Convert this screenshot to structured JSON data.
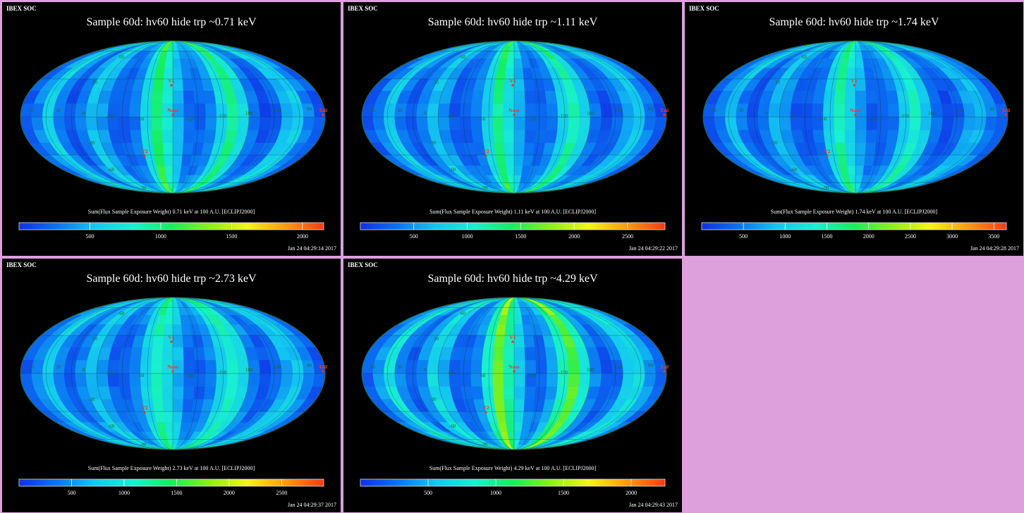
{
  "colormap": [
    "#1030e6",
    "#0a74f2",
    "#14c8f0",
    "#19f0d0",
    "#16ef5a",
    "#8df018",
    "#f6f416",
    "#fb9a10",
    "#f53a16"
  ],
  "grid_label_color": "#1e6a2e",
  "marker_color": "#ff3020",
  "panels": [
    {
      "soc_label": "IBEX SOC",
      "chart_data": {
        "type": "heatmap",
        "title": "Sample 60d: hv60 hide trp ~0.71 keV",
        "colorbar_title": "Sum(Flux Sample Exposure Weight)  0.71 keV at 100 A.U. [ECLIPJ2000]",
        "colorbar_ticks": [
          500,
          1000,
          1500,
          2000
        ],
        "colorbar_range": [
          0,
          2150
        ],
        "timestamp": "Jan 24 04:29:14 2017",
        "swath_intensity": [
          0.06,
          0.14,
          0.26,
          0.22,
          0.09,
          0.05,
          0.12,
          0.3,
          0.43,
          0.29,
          0.14,
          0.09,
          0.1,
          0.21,
          0.33,
          0.46,
          0.29,
          0.12,
          0.08,
          0.07,
          0.18,
          0.24,
          0.14,
          0.06,
          0.13,
          0.27,
          0.15,
          0.07
        ]
      },
      "grid_labels": {
        "lon_left": "60",
        "lon_30": "30",
        "lon_0": "0",
        "lon_m30": "-30",
        "lon_m60": "-60",
        "lon_m120": "-120",
        "lon_m150": "-150",
        "lon_180": "180",
        "lon_150": "150",
        "lon_right": "90",
        "lat_60n": "60",
        "lat_30n": "30",
        "lat_30s": "-30",
        "lat_60s": "-60",
        "lat_90s": "-90"
      },
      "markers": {
        "v1": "V1",
        "v2": "V2",
        "nose": "Nose",
        "tail": "Tail"
      }
    },
    {
      "soc_label": "IBEX SOC",
      "chart_data": {
        "type": "heatmap",
        "title": "Sample 60d: hv60 hide trp ~1.11 keV",
        "colorbar_title": "Sum(Flux Sample Exposure Weight)  1.11 keV at 100 A.U. [ECLIPJ2000]",
        "colorbar_ticks": [
          500,
          1000,
          1500,
          2000,
          2500
        ],
        "colorbar_range": [
          0,
          2850
        ],
        "timestamp": "Jan 24 04:29:22 2017",
        "swath_intensity": [
          0.06,
          0.14,
          0.24,
          0.2,
          0.09,
          0.05,
          0.12,
          0.28,
          0.4,
          0.27,
          0.13,
          0.08,
          0.09,
          0.2,
          0.31,
          0.44,
          0.28,
          0.12,
          0.08,
          0.07,
          0.17,
          0.23,
          0.14,
          0.06,
          0.12,
          0.25,
          0.14,
          0.07
        ]
      },
      "grid_labels": {
        "lon_left": "60",
        "lon_30": "30",
        "lon_0": "0",
        "lon_m30": "-30",
        "lon_m60": "-60",
        "lon_m120": "-120",
        "lon_m150": "-150",
        "lon_180": "180",
        "lon_150": "150",
        "lon_right": "90",
        "lat_60n": "60",
        "lat_30n": "30",
        "lat_30s": "-30",
        "lat_60s": "-60",
        "lat_90s": "-90"
      },
      "markers": {
        "v1": "V1",
        "v2": "V2",
        "nose": "Nose",
        "tail": "Tail"
      }
    },
    {
      "soc_label": "IBEX SOC",
      "chart_data": {
        "type": "heatmap",
        "title": "Sample 60d: hv60 hide trp ~1.74 keV",
        "colorbar_title": "Sum(Flux Sample Exposure Weight)  1.74 keV at 100 A.U. [ECLIPJ2000]",
        "colorbar_ticks": [
          500,
          1000,
          1500,
          2000,
          2500,
          3000,
          3500
        ],
        "colorbar_range": [
          0,
          3650
        ],
        "timestamp": "Jan 24 04:29:28 2017",
        "swath_intensity": [
          0.06,
          0.13,
          0.22,
          0.19,
          0.08,
          0.05,
          0.11,
          0.26,
          0.37,
          0.25,
          0.12,
          0.08,
          0.09,
          0.19,
          0.29,
          0.4,
          0.26,
          0.11,
          0.07,
          0.07,
          0.16,
          0.21,
          0.13,
          0.06,
          0.12,
          0.24,
          0.14,
          0.07
        ]
      },
      "grid_labels": {
        "lon_left": "60",
        "lon_30": "30",
        "lon_0": "0",
        "lon_m30": "-30",
        "lon_m60": "-60",
        "lon_m120": "-120",
        "lon_m150": "-150",
        "lon_180": "180",
        "lon_150": "150",
        "lon_right": "90",
        "lat_60n": "60",
        "lat_30n": "30",
        "lat_30s": "-30",
        "lat_60s": "-60",
        "lat_90s": "-90"
      },
      "markers": {
        "v1": "V1",
        "v2": "V2",
        "nose": "Nose",
        "tail": "Tail"
      }
    },
    {
      "soc_label": "IBEX SOC",
      "chart_data": {
        "type": "heatmap",
        "title": "Sample 60d: hv60 hide trp ~2.73 keV",
        "colorbar_title": "Sum(Flux Sample Exposure Weight)  2.73 keV at 100 A.U. [ECLIPJ2000]",
        "colorbar_ticks": [
          500,
          1000,
          1500,
          2000,
          2500
        ],
        "colorbar_range": [
          0,
          2900
        ],
        "timestamp": "Jan 24 04:29:37 2017",
        "swath_intensity": [
          0.07,
          0.16,
          0.25,
          0.21,
          0.1,
          0.06,
          0.14,
          0.29,
          0.36,
          0.28,
          0.15,
          0.09,
          0.1,
          0.22,
          0.3,
          0.38,
          0.27,
          0.13,
          0.08,
          0.08,
          0.19,
          0.24,
          0.15,
          0.07,
          0.14,
          0.26,
          0.16,
          0.08
        ]
      },
      "grid_labels": {
        "lon_left": "60",
        "lon_30": "30",
        "lon_0": "0",
        "lon_m30": "-30",
        "lon_m60": "-60",
        "lon_m120": "-120",
        "lon_m150": "-150",
        "lon_180": "180",
        "lon_150": "150",
        "lon_right": "90",
        "lat_60n": "60",
        "lat_30n": "30",
        "lat_30s": "-30",
        "lat_60s": "-60",
        "lat_90s": "-90"
      },
      "markers": {
        "v1": "V1",
        "v2": "V2",
        "nose": "Nose",
        "tail": "Tail"
      }
    },
    {
      "soc_label": "IBEX SOC",
      "chart_data": {
        "type": "heatmap",
        "title": "Sample 60d: hv60 hide trp ~4.29 keV",
        "colorbar_title": "Sum(Flux Sample Exposure Weight)  4.29 keV at 100 A.U. [ECLIPJ2000]",
        "colorbar_ticks": [
          500,
          1000,
          1500,
          2000
        ],
        "colorbar_range": [
          0,
          2250
        ],
        "timestamp": "Jan 24 04:29:43 2017",
        "swath_intensity": [
          0.08,
          0.18,
          0.3,
          0.26,
          0.11,
          0.06,
          0.15,
          0.36,
          0.55,
          0.38,
          0.18,
          0.1,
          0.12,
          0.26,
          0.4,
          0.58,
          0.36,
          0.15,
          0.09,
          0.08,
          0.22,
          0.3,
          0.17,
          0.07,
          0.15,
          0.32,
          0.18,
          0.08
        ]
      },
      "grid_labels": {
        "lon_left": "60",
        "lon_30": "30",
        "lon_0": "0",
        "lon_m30": "-30",
        "lon_m60": "-60",
        "lon_m120": "-120",
        "lon_m150": "-150",
        "lon_180": "180",
        "lon_150": "150",
        "lon_right": "90",
        "lat_60n": "60",
        "lat_30n": "30",
        "lat_30s": "-30",
        "lat_60s": "-60",
        "lat_90s": "-90"
      },
      "markers": {
        "v1": "V1",
        "v2": "V2",
        "nose": "Nose",
        "tail": "Tail"
      }
    }
  ]
}
